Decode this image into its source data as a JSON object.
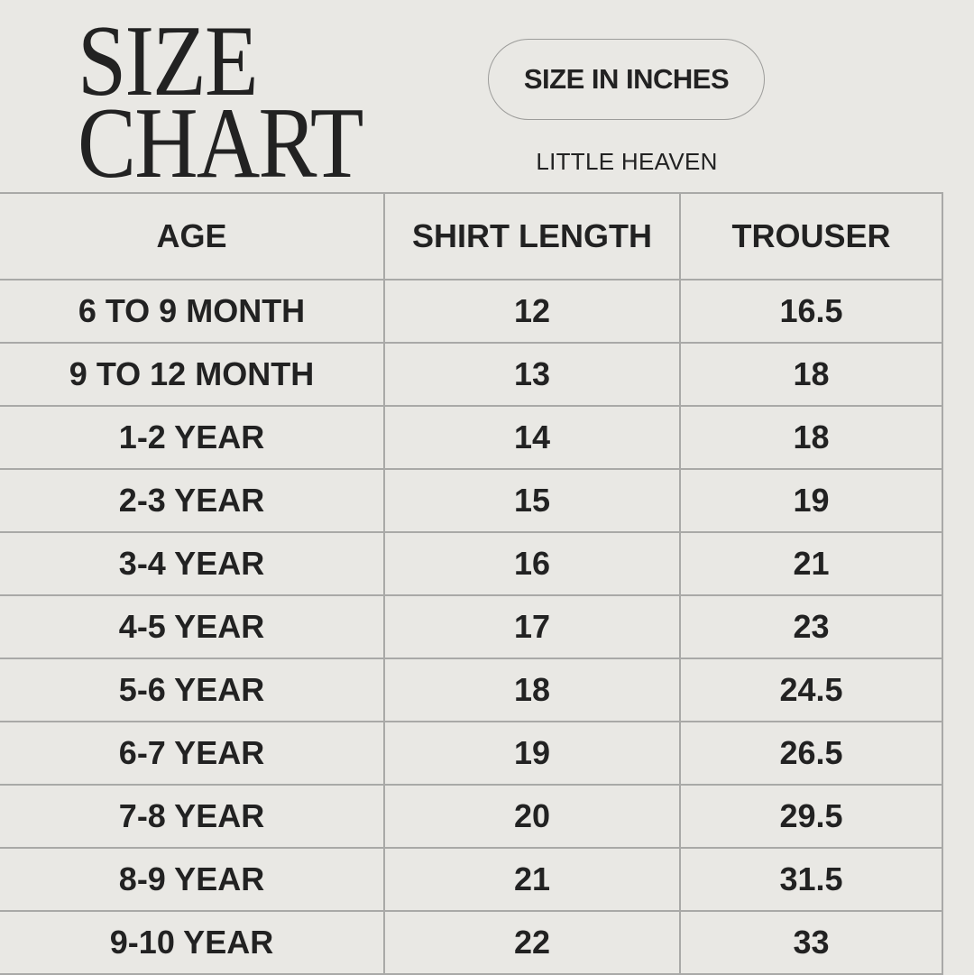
{
  "title": {
    "line1": "SIZE",
    "line2": "CHART"
  },
  "unit_badge": "SIZE IN INCHES",
  "brand": "LITTLE HEAVEN",
  "table": {
    "headers": [
      "AGE",
      "SHIRT LENGTH",
      "TROUSER"
    ],
    "rows": [
      [
        "6 TO 9 MONTH",
        "12",
        "16.5"
      ],
      [
        "9 TO 12 MONTH",
        "13",
        "18"
      ],
      [
        "1-2 YEAR",
        "14",
        "18"
      ],
      [
        "2-3 YEAR",
        "15",
        "19"
      ],
      [
        "3-4 YEAR",
        "16",
        "21"
      ],
      [
        "4-5 YEAR",
        "17",
        "23"
      ],
      [
        "5-6 YEAR",
        "18",
        "24.5"
      ],
      [
        "6-7 YEAR",
        "19",
        "26.5"
      ],
      [
        "7-8 YEAR",
        "20",
        "29.5"
      ],
      [
        "8-9 YEAR",
        "21",
        "31.5"
      ],
      [
        "9-10 YEAR",
        "22",
        "33"
      ]
    ]
  },
  "colors": {
    "background": "#e9e8e4",
    "text": "#222222",
    "border": "#a9a9a7"
  }
}
